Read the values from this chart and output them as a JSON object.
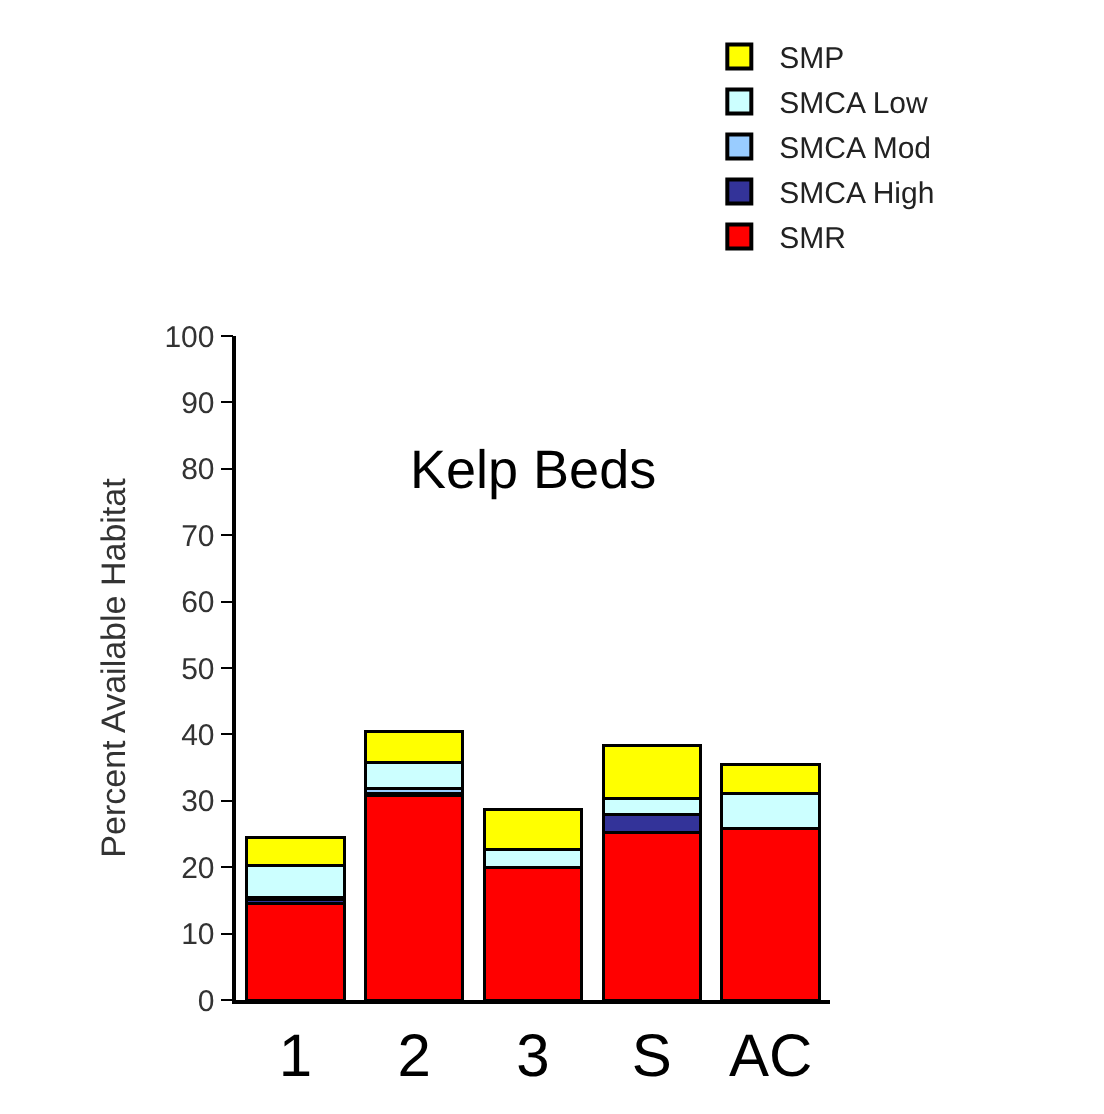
{
  "chart_data": {
    "type": "bar",
    "stacked": true,
    "ylabel": "Percent Available Habitat",
    "annotations": [
      "Kelp Beds"
    ],
    "categories": [
      "1",
      "2",
      "3",
      "S",
      "AC"
    ],
    "series": [
      {
        "name": "SMR",
        "color": "#ff0000",
        "values": [
          14.5,
          30.8,
          19.9,
          25.3,
          25.8
        ]
      },
      {
        "name": "SMCA High",
        "color": "#333399",
        "values": [
          0.7,
          0.3,
          0,
          2.6,
          0
        ]
      },
      {
        "name": "SMCA Mod",
        "color": "#99ccff",
        "values": [
          0.3,
          0.7,
          0,
          0,
          0
        ]
      },
      {
        "name": "SMCA Low",
        "color": "#ccffff",
        "values": [
          4.8,
          4.0,
          2.8,
          2.4,
          5.3
        ]
      },
      {
        "name": "SMP",
        "color": "#ffff00",
        "values": [
          4.2,
          4.6,
          6.0,
          8.1,
          4.4
        ]
      }
    ],
    "ylim": [
      0,
      100
    ],
    "yticks": [
      0,
      10,
      20,
      30,
      40,
      50,
      60,
      70,
      80,
      90,
      100
    ],
    "legend": "top right"
  }
}
